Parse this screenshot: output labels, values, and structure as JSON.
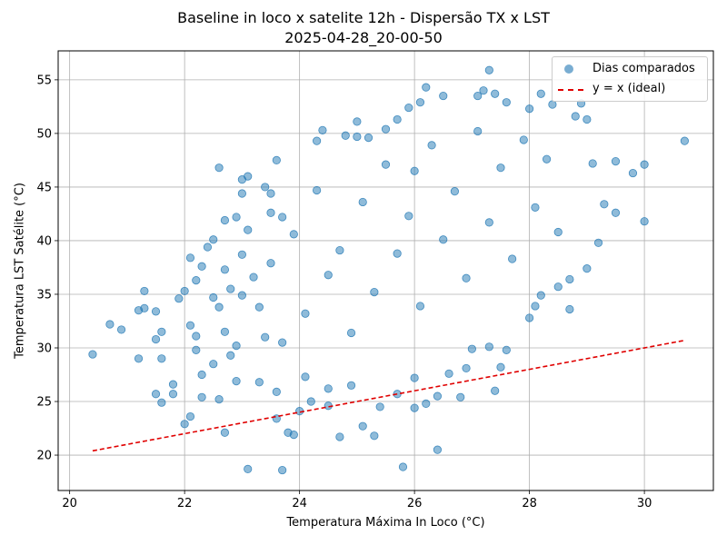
{
  "chart_data": {
    "type": "scatter",
    "title": "Baseline in loco x satelite 12h - Dispersão TX x LST",
    "subtitle": "2025-04-28_20-00-50",
    "xlabel": "Temperatura Máxima In Loco (°C)",
    "ylabel": "Temperatura LST Satélite (°C)",
    "xlim": [
      19.8,
      31.2
    ],
    "ylim": [
      16.7,
      57.7
    ],
    "xticks": [
      20,
      22,
      24,
      26,
      28,
      30
    ],
    "yticks": [
      20,
      25,
      30,
      35,
      40,
      45,
      50,
      55
    ],
    "grid": true,
    "legend_position": "top-right",
    "series": [
      {
        "name": "Dias comparados",
        "kind": "scatter",
        "color": "#1f77b4",
        "alpha": 0.5,
        "points": [
          [
            20.4,
            29.4
          ],
          [
            20.7,
            32.2
          ],
          [
            20.9,
            31.7
          ],
          [
            21.2,
            33.5
          ],
          [
            21.2,
            29.0
          ],
          [
            21.3,
            35.3
          ],
          [
            21.3,
            33.7
          ],
          [
            21.5,
            33.4
          ],
          [
            21.5,
            30.8
          ],
          [
            21.5,
            25.7
          ],
          [
            21.6,
            31.5
          ],
          [
            21.6,
            29.0
          ],
          [
            21.6,
            24.9
          ],
          [
            21.8,
            25.7
          ],
          [
            21.8,
            26.6
          ],
          [
            21.9,
            34.6
          ],
          [
            22.0,
            22.9
          ],
          [
            22.0,
            35.3
          ],
          [
            22.1,
            38.4
          ],
          [
            22.1,
            32.1
          ],
          [
            22.1,
            23.6
          ],
          [
            22.2,
            36.3
          ],
          [
            22.2,
            31.1
          ],
          [
            22.2,
            29.8
          ],
          [
            22.3,
            37.6
          ],
          [
            22.3,
            27.5
          ],
          [
            22.3,
            25.4
          ],
          [
            22.4,
            39.4
          ],
          [
            22.5,
            40.1
          ],
          [
            22.5,
            34.7
          ],
          [
            22.5,
            28.5
          ],
          [
            22.6,
            46.8
          ],
          [
            22.6,
            25.2
          ],
          [
            22.7,
            41.9
          ],
          [
            22.7,
            37.3
          ],
          [
            22.7,
            31.5
          ],
          [
            22.7,
            22.1
          ],
          [
            22.8,
            35.5
          ],
          [
            22.9,
            42.2
          ],
          [
            22.9,
            30.2
          ],
          [
            22.9,
            26.9
          ],
          [
            23.0,
            45.7
          ],
          [
            23.0,
            44.4
          ],
          [
            23.0,
            38.7
          ],
          [
            23.1,
            46.0
          ],
          [
            23.1,
            41.0
          ],
          [
            23.1,
            18.7
          ],
          [
            23.2,
            36.6
          ],
          [
            23.3,
            33.8
          ],
          [
            23.4,
            31.0
          ],
          [
            23.4,
            45.0
          ],
          [
            23.5,
            44.4
          ],
          [
            23.5,
            42.6
          ],
          [
            23.6,
            47.5
          ],
          [
            23.6,
            23.4
          ],
          [
            23.6,
            25.9
          ],
          [
            23.7,
            18.6
          ],
          [
            23.7,
            42.2
          ],
          [
            23.8,
            22.1
          ],
          [
            23.9,
            21.9
          ],
          [
            24.0,
            24.1
          ],
          [
            24.2,
            25.0
          ],
          [
            24.3,
            49.3
          ],
          [
            24.4,
            50.3
          ],
          [
            24.5,
            24.6
          ],
          [
            24.7,
            21.7
          ],
          [
            24.8,
            49.8
          ],
          [
            25.0,
            51.1
          ],
          [
            25.0,
            49.7
          ],
          [
            25.1,
            22.7
          ],
          [
            25.2,
            49.6
          ],
          [
            25.3,
            21.8
          ],
          [
            25.5,
            50.4
          ],
          [
            25.7,
            51.3
          ],
          [
            25.8,
            18.9
          ],
          [
            25.9,
            52.4
          ],
          [
            26.0,
            46.5
          ],
          [
            26.0,
            24.4
          ],
          [
            26.1,
            52.9
          ],
          [
            26.2,
            54.3
          ],
          [
            26.2,
            24.8
          ],
          [
            26.4,
            20.5
          ],
          [
            26.4,
            25.5
          ],
          [
            26.5,
            53.5
          ],
          [
            26.8,
            25.4
          ],
          [
            27.0,
            29.9
          ],
          [
            27.1,
            53.5
          ],
          [
            27.2,
            54.0
          ],
          [
            27.3,
            55.9
          ],
          [
            27.3,
            30.1
          ],
          [
            27.4,
            26.0
          ],
          [
            27.4,
            53.7
          ],
          [
            27.5,
            28.2
          ],
          [
            27.6,
            52.9
          ],
          [
            28.0,
            52.3
          ],
          [
            28.1,
            33.9
          ],
          [
            28.2,
            34.9
          ],
          [
            28.2,
            53.7
          ],
          [
            28.4,
            52.7
          ],
          [
            28.7,
            33.6
          ],
          [
            28.7,
            36.4
          ],
          [
            28.8,
            51.6
          ],
          [
            28.9,
            52.8
          ],
          [
            29.0,
            51.3
          ],
          [
            29.1,
            47.2
          ],
          [
            29.3,
            43.4
          ],
          [
            29.5,
            47.4
          ],
          [
            29.8,
            46.3
          ],
          [
            30.0,
            47.1
          ],
          [
            30.0,
            41.8
          ],
          [
            30.7,
            49.3
          ],
          [
            24.1,
            27.3
          ],
          [
            24.5,
            26.2
          ],
          [
            24.9,
            26.5
          ],
          [
            25.4,
            24.5
          ],
          [
            25.7,
            25.7
          ],
          [
            26.0,
            27.2
          ],
          [
            26.6,
            27.6
          ],
          [
            26.9,
            28.1
          ],
          [
            27.6,
            29.8
          ],
          [
            28.0,
            32.8
          ],
          [
            28.5,
            35.7
          ],
          [
            29.0,
            37.4
          ],
          [
            29.2,
            39.8
          ],
          [
            29.5,
            42.6
          ],
          [
            22.6,
            33.8
          ],
          [
            22.8,
            29.3
          ],
          [
            23.0,
            34.9
          ],
          [
            23.3,
            26.8
          ],
          [
            23.5,
            37.9
          ],
          [
            23.7,
            30.5
          ],
          [
            23.9,
            40.6
          ],
          [
            24.1,
            33.2
          ],
          [
            24.3,
            44.7
          ],
          [
            24.5,
            36.8
          ],
          [
            24.7,
            39.1
          ],
          [
            24.9,
            31.4
          ],
          [
            25.1,
            43.6
          ],
          [
            25.3,
            35.2
          ],
          [
            25.5,
            47.1
          ],
          [
            25.7,
            38.8
          ],
          [
            25.9,
            42.3
          ],
          [
            26.1,
            33.9
          ],
          [
            26.3,
            48.9
          ],
          [
            26.5,
            40.1
          ],
          [
            26.7,
            44.6
          ],
          [
            26.9,
            36.5
          ],
          [
            27.1,
            50.2
          ],
          [
            27.3,
            41.7
          ],
          [
            27.5,
            46.8
          ],
          [
            27.7,
            38.3
          ],
          [
            27.9,
            49.4
          ],
          [
            28.1,
            43.1
          ],
          [
            28.3,
            47.6
          ],
          [
            28.5,
            40.8
          ]
        ]
      },
      {
        "name": "y = x (ideal)",
        "kind": "line",
        "color": "#e00000",
        "dash": "dashed",
        "x": [
          20.4,
          30.7
        ],
        "y": [
          20.4,
          30.7
        ]
      }
    ]
  }
}
